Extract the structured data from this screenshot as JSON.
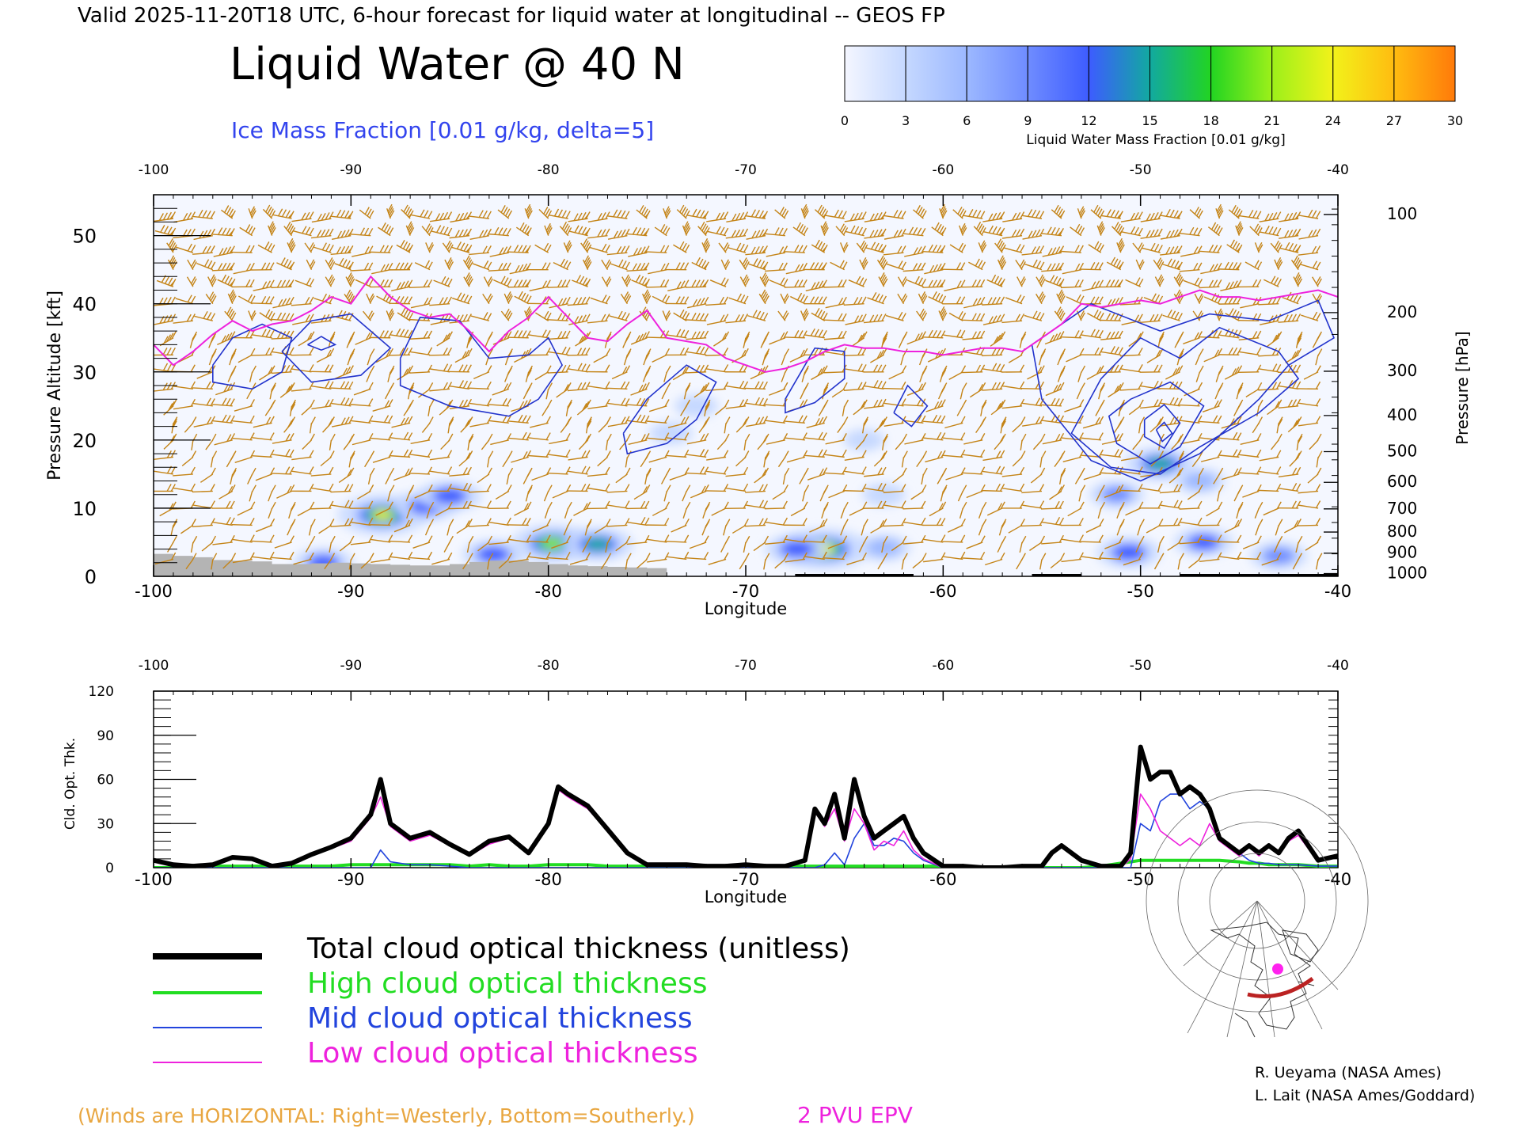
{
  "header": {
    "valid_line": "Valid 2025-11-20T18 UTC, 6-hour forecast for liquid water at longitudinal -- GEOS FP",
    "title": "Liquid Water @ 40 N",
    "subtitle": "Ice Mass Fraction [0.01 g/kg, delta=5]"
  },
  "colorbar": {
    "label": "Liquid Water Mass Fraction [0.01 g/kg]",
    "ticks": [
      "0",
      "3",
      "6",
      "9",
      "12",
      "15",
      "18",
      "21",
      "24",
      "27",
      "30"
    ],
    "colors": [
      "#f4f6ff",
      "#c5d8ff",
      "#9cb8ff",
      "#6f8cff",
      "#3d5cff",
      "#12a9a0",
      "#22d422",
      "#9cf01a",
      "#f2f21a",
      "#ffbc10",
      "#ff7a0a"
    ]
  },
  "colors": {
    "wind_barbs": "#c48417",
    "ice_contours": "#2233cc",
    "epv_line": "#ee22dd",
    "ground": "#b4b4b4",
    "total": "#000000",
    "high": "#22dd22",
    "mid": "#2244dd",
    "low": "#ee22dd"
  },
  "chart_data": [
    {
      "type": "heatmap",
      "xlabel": "Longitude",
      "ylabel": "Pressure Altitude [kft]",
      "y2label": "Pressure [hPa]",
      "xlim": [
        -100,
        -40
      ],
      "ylim": [
        0,
        56
      ],
      "x_ticks": [
        "-100",
        "-90",
        "-80",
        "-70",
        "-60",
        "-50",
        "-40"
      ],
      "x_tick_values": [
        -100,
        -90,
        -80,
        -70,
        -60,
        -50,
        -40
      ],
      "y_ticks": [
        "0",
        "10",
        "20",
        "30",
        "40",
        "50"
      ],
      "y_tick_values": [
        0,
        10,
        20,
        30,
        40,
        50
      ],
      "pressure_ticks": [
        "100",
        "200",
        "300",
        "400",
        "500",
        "600",
        "700",
        "800",
        "900",
        "1000"
      ],
      "pressure_tick_kft": [
        53.1,
        38.7,
        30.1,
        23.6,
        18.3,
        13.8,
        9.9,
        6.5,
        3.4,
        0.4
      ],
      "liquid_water_blobs": [
        {
          "lon": -88.4,
          "kft": 9.0,
          "value": 24
        },
        {
          "lon": -86.2,
          "kft": 10.3,
          "value": 12
        },
        {
          "lon": -85.0,
          "kft": 11.8,
          "value": 13
        },
        {
          "lon": -79.8,
          "kft": 4.8,
          "value": 21
        },
        {
          "lon": -77.5,
          "kft": 4.7,
          "value": 16
        },
        {
          "lon": -82.8,
          "kft": 3.2,
          "value": 12
        },
        {
          "lon": -91.4,
          "kft": 2.0,
          "value": 11
        },
        {
          "lon": -66.0,
          "kft": 4.0,
          "value": 24
        },
        {
          "lon": -67.4,
          "kft": 4.0,
          "value": 13
        },
        {
          "lon": -63.0,
          "kft": 4.2,
          "value": 8
        },
        {
          "lon": -49.0,
          "kft": 16.5,
          "value": 16
        },
        {
          "lon": -50.6,
          "kft": 3.5,
          "value": 13
        },
        {
          "lon": -51.2,
          "kft": 12.0,
          "value": 9
        },
        {
          "lon": -46.8,
          "kft": 5.0,
          "value": 11
        },
        {
          "lon": -43.0,
          "kft": 3.0,
          "value": 10
        },
        {
          "lon": -47.0,
          "kft": 14.0,
          "value": 7
        },
        {
          "lon": -63.0,
          "kft": 12.0,
          "value": 4
        },
        {
          "lon": -64.0,
          "kft": 20.0,
          "value": 3
        },
        {
          "lon": -72.5,
          "kft": 25.0,
          "value": 4
        },
        {
          "lon": -73.8,
          "kft": 21.0,
          "value": 4
        }
      ],
      "ice_contours": [
        [
          [
            -97,
            31
          ],
          [
            -96,
            35
          ],
          [
            -94.5,
            37
          ],
          [
            -93,
            35
          ],
          [
            -93.5,
            30
          ],
          [
            -95,
            27.5
          ],
          [
            -97,
            28.5
          ],
          [
            -97,
            31
          ]
        ],
        [
          [
            -93.5,
            33
          ],
          [
            -92,
            37.5
          ],
          [
            -90,
            38.5
          ],
          [
            -88,
            33.5
          ],
          [
            -89.5,
            29.5
          ],
          [
            -92,
            28.5
          ],
          [
            -93.5,
            33
          ]
        ],
        [
          [
            -92.2,
            34
          ],
          [
            -91.5,
            35.2
          ],
          [
            -90.8,
            34
          ],
          [
            -91.5,
            33.2
          ],
          [
            -92.2,
            34
          ]
        ],
        [
          [
            -87.5,
            32
          ],
          [
            -86.5,
            38
          ],
          [
            -84.5,
            37.5
          ],
          [
            -83,
            32
          ],
          [
            -81,
            32.5
          ],
          [
            -80,
            35
          ],
          [
            -79.3,
            31
          ],
          [
            -80.5,
            26
          ],
          [
            -82,
            23.5
          ],
          [
            -85,
            25
          ],
          [
            -87.5,
            28
          ],
          [
            -87.5,
            32
          ]
        ],
        [
          [
            -76.2,
            21
          ],
          [
            -75,
            26
          ],
          [
            -73,
            31
          ],
          [
            -71.5,
            28.5
          ],
          [
            -72.5,
            23
          ],
          [
            -74,
            19.5
          ],
          [
            -76,
            18
          ],
          [
            -76.2,
            21
          ]
        ],
        [
          [
            -68,
            26
          ],
          [
            -66.5,
            33.5
          ],
          [
            -65,
            33
          ],
          [
            -65,
            29
          ],
          [
            -66.5,
            25.5
          ],
          [
            -68,
            24
          ],
          [
            -68,
            26
          ]
        ],
        [
          [
            -62.5,
            24
          ],
          [
            -61.8,
            28
          ],
          [
            -60.8,
            25
          ],
          [
            -61.6,
            22
          ],
          [
            -62.5,
            24
          ]
        ],
        [
          [
            -52,
            29
          ],
          [
            -50,
            35
          ],
          [
            -48,
            32
          ],
          [
            -46,
            36.5
          ],
          [
            -43,
            33
          ],
          [
            -42,
            29
          ],
          [
            -44,
            24
          ],
          [
            -47,
            19
          ],
          [
            -49,
            15
          ],
          [
            -51.5,
            16
          ],
          [
            -53.5,
            21
          ],
          [
            -52,
            29
          ]
        ],
        [
          [
            -50.5,
            26
          ],
          [
            -48.5,
            28.5
          ],
          [
            -46.8,
            25
          ],
          [
            -48,
            19
          ],
          [
            -49.5,
            16.5
          ],
          [
            -51.2,
            19.5
          ],
          [
            -51.6,
            23.5
          ],
          [
            -50.5,
            26
          ]
        ],
        [
          [
            -49.8,
            23
          ],
          [
            -48.8,
            25.2
          ],
          [
            -48,
            22.5
          ],
          [
            -48.8,
            18.8
          ],
          [
            -49.8,
            20.5
          ],
          [
            -49.8,
            23
          ]
        ],
        [
          [
            -49.2,
            21.5
          ],
          [
            -48.8,
            22.6
          ],
          [
            -48.4,
            21
          ],
          [
            -48.9,
            19.8
          ],
          [
            -49.2,
            21.5
          ]
        ],
        [
          [
            -55.5,
            34
          ],
          [
            -52.5,
            40
          ],
          [
            -49,
            36
          ],
          [
            -46.5,
            38.5
          ],
          [
            -43.5,
            37.5
          ],
          [
            -41,
            40.5
          ],
          [
            -40.2,
            35
          ],
          [
            -42.5,
            31
          ],
          [
            -44,
            26
          ],
          [
            -47,
            18
          ],
          [
            -50,
            14
          ],
          [
            -52.5,
            17
          ],
          [
            -55,
            26
          ],
          [
            -55.5,
            34
          ]
        ]
      ],
      "epv_2pvu": {
        "lon": [
          -100,
          -99,
          -98,
          -97,
          -96,
          -95,
          -94,
          -93,
          -92,
          -91,
          -90,
          -89,
          -88,
          -87,
          -86,
          -85,
          -84,
          -83,
          -82,
          -81,
          -80,
          -79,
          -78,
          -77,
          -76,
          -75,
          -74,
          -73,
          -72,
          -71,
          -70,
          -69,
          -68,
          -67,
          -66,
          -65,
          -64,
          -63,
          -62,
          -61,
          -60,
          -59,
          -58,
          -57,
          -56,
          -55,
          -54,
          -53,
          -52,
          -51,
          -50,
          -49,
          -48,
          -47,
          -46,
          -45,
          -44,
          -43,
          -42,
          -41,
          -40
        ],
        "kft": [
          34,
          31,
          33,
          35.5,
          37.5,
          36,
          37,
          37.5,
          39,
          41,
          40,
          44,
          41,
          39,
          38,
          38.5,
          36,
          33,
          36,
          38,
          41,
          38,
          35,
          34.5,
          37,
          39,
          35,
          34.5,
          34,
          32,
          31,
          30,
          30.5,
          31.5,
          33,
          34,
          33.5,
          33.5,
          33,
          33,
          32.5,
          33,
          33.5,
          33.5,
          33,
          35,
          37,
          40,
          39.5,
          40,
          40.5,
          40,
          41,
          42,
          41,
          41,
          40.5,
          41,
          41.5,
          42,
          41
        ]
      },
      "ground_kft": [
        3.3,
        3.0,
        2.8,
        2.4,
        2.3,
        2.2,
        1.8,
        1.8,
        1.9,
        2.0,
        1.9,
        1.8,
        1.7,
        1.6,
        1.6,
        1.8,
        2.1,
        2.3,
        2.3,
        2.1,
        1.8,
        1.6,
        1.5,
        1.4,
        1.3,
        1.2
      ],
      "ground_lon_start": -100,
      "ground_lon_step": 1,
      "wind_barbs_note": "barbs plotted at every 1 degree longitude and ~2.5 kft altitude"
    },
    {
      "type": "line",
      "xlabel": "Longitude",
      "ylabel": "Cld. Opt. Thk.",
      "xlim": [
        -100,
        -40
      ],
      "ylim": [
        0,
        120
      ],
      "x_ticks": [
        "-100",
        "-90",
        "-80",
        "-70",
        "-60",
        "-50",
        "-40"
      ],
      "x_tick_values": [
        -100,
        -90,
        -80,
        -70,
        -60,
        -50,
        -40
      ],
      "y_ticks": [
        "0",
        "30",
        "60",
        "90",
        "120"
      ],
      "y_tick_values": [
        0,
        30,
        60,
        90,
        120
      ],
      "x": [
        -100,
        -99,
        -98,
        -97,
        -96,
        -95,
        -94,
        -93,
        -92,
        -91,
        -90,
        -89,
        -88.5,
        -88,
        -87,
        -86,
        -85,
        -84,
        -83,
        -82,
        -81,
        -80,
        -79.5,
        -79,
        -78,
        -77,
        -76,
        -75,
        -74,
        -73,
        -72,
        -71,
        -70,
        -69,
        -68,
        -67,
        -66.5,
        -66,
        -65.5,
        -65,
        -64.5,
        -64,
        -63.5,
        -63,
        -62.5,
        -62,
        -61.5,
        -61,
        -60,
        -59,
        -58,
        -57,
        -56,
        -55,
        -54.5,
        -54,
        -53,
        -52,
        -51,
        -50.5,
        -50,
        -49.5,
        -49,
        -48.5,
        -48,
        -47.5,
        -47,
        -46.5,
        -46,
        -45,
        -44.5,
        -44,
        -43.5,
        -43,
        -42.5,
        -42,
        -41,
        -40
      ],
      "series": [
        {
          "name": "Total cloud optical thickness (unitless)",
          "values": [
            5,
            2,
            1,
            2,
            7,
            6,
            1,
            3,
            9,
            14,
            20,
            36,
            60,
            30,
            20,
            24,
            16,
            9,
            18,
            21,
            10,
            30,
            55,
            50,
            42,
            26,
            10,
            2,
            2,
            2,
            1,
            1,
            2,
            1,
            1,
            5,
            40,
            30,
            50,
            20,
            60,
            35,
            20,
            25,
            30,
            35,
            20,
            10,
            1,
            1,
            0,
            0,
            1,
            1,
            10,
            15,
            5,
            1,
            1,
            10,
            82,
            60,
            65,
            65,
            50,
            55,
            50,
            40,
            20,
            10,
            15,
            10,
            15,
            10,
            20,
            25,
            5,
            8
          ]
        },
        {
          "name": "High cloud optical thickness",
          "values": [
            0,
            0,
            0,
            1,
            1,
            1,
            1,
            1,
            1,
            1,
            2,
            2,
            2,
            2,
            2,
            2,
            2,
            1,
            2,
            1,
            1,
            2,
            2,
            2,
            2,
            1,
            1,
            1,
            1,
            1,
            1,
            1,
            1,
            1,
            1,
            1,
            1,
            1,
            1,
            1,
            1,
            1,
            1,
            1,
            1,
            1,
            1,
            1,
            1,
            1,
            0,
            0,
            0,
            0,
            0,
            0,
            0,
            1,
            3,
            4,
            5,
            5,
            5,
            5,
            5,
            5,
            5,
            5,
            5,
            4,
            3,
            3,
            2,
            2,
            2,
            2,
            1,
            1
          ]
        },
        {
          "name": "Mid cloud optical thickness",
          "values": [
            0,
            0,
            0,
            0,
            0,
            0,
            0,
            0,
            0,
            0,
            0,
            0,
            12,
            4,
            2,
            2,
            1,
            0,
            0,
            0,
            0,
            0,
            0,
            0,
            0,
            0,
            0,
            0,
            0,
            0,
            0,
            0,
            0,
            0,
            0,
            0,
            0,
            2,
            10,
            2,
            20,
            30,
            15,
            15,
            20,
            18,
            10,
            5,
            0,
            0,
            0,
            0,
            0,
            0,
            0,
            0,
            0,
            0,
            0,
            0,
            30,
            25,
            45,
            50,
            50,
            40,
            45,
            40,
            20,
            10,
            5,
            3,
            3,
            2,
            2,
            2,
            1,
            1
          ]
        },
        {
          "name": "Low cloud optical thickness",
          "values": [
            5,
            2,
            1,
            1,
            6,
            5,
            0,
            2,
            8,
            13,
            18,
            34,
            48,
            28,
            18,
            22,
            15,
            8,
            16,
            20,
            9,
            28,
            53,
            48,
            40,
            25,
            9,
            1,
            1,
            1,
            0,
            0,
            1,
            0,
            0,
            4,
            38,
            28,
            40,
            18,
            40,
            30,
            12,
            18,
            15,
            25,
            12,
            6,
            0,
            0,
            0,
            0,
            1,
            1,
            10,
            14,
            5,
            0,
            0,
            6,
            50,
            40,
            25,
            20,
            15,
            20,
            15,
            30,
            18,
            8,
            14,
            8,
            14,
            9,
            18,
            22,
            4,
            7
          ]
        }
      ]
    }
  ],
  "legend": {
    "total": "Total cloud optical thickness (unitless)",
    "high": "High cloud optical thickness",
    "mid": "Mid cloud optical thickness",
    "low": "Low cloud optical thickness"
  },
  "footer": {
    "winds_note": "(Winds are HORIZONTAL: Right=Westerly, Bottom=Southerly.)",
    "epv_label": "2 PVU EPV",
    "credit1": "R. Ueyama (NASA Ames)",
    "credit2": "L. Lait (NASA Ames/Goddard)"
  }
}
